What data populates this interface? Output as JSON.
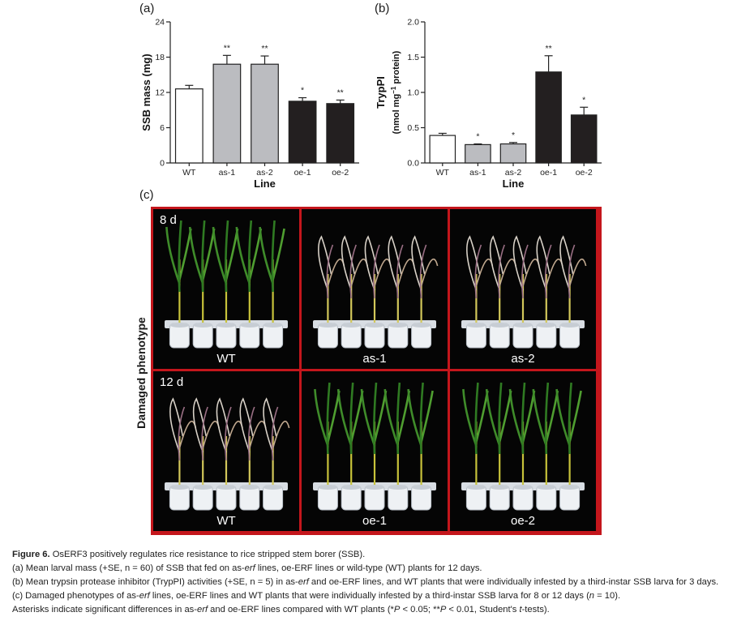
{
  "panels": {
    "a": {
      "letter": "(a)",
      "chart_data": {
        "type": "bar",
        "categories": [
          "WT",
          "as-1",
          "as-2",
          "oe-1",
          "oe-2"
        ],
        "values": [
          12.6,
          16.8,
          16.8,
          10.5,
          10.1
        ],
        "errors": [
          0.6,
          1.5,
          1.4,
          0.6,
          0.6
        ],
        "significance": [
          "",
          "**",
          "**",
          "*",
          "**"
        ],
        "bar_colors": [
          "#ffffff",
          "#bbbcc0",
          "#bbbcc0",
          "#231f20",
          "#231f20"
        ],
        "ylabel": "SSB mass (mg)",
        "xlabel": "Line",
        "ylim": [
          0,
          24
        ],
        "yticks": [
          "0",
          "6",
          "12",
          "18",
          "24"
        ]
      }
    },
    "b": {
      "letter": "(b)",
      "chart_data": {
        "type": "bar",
        "categories": [
          "WT",
          "as-1",
          "as-2",
          "oe-1",
          "oe-2"
        ],
        "values": [
          0.39,
          0.26,
          0.27,
          1.29,
          0.68
        ],
        "errors": [
          0.03,
          0.01,
          0.02,
          0.23,
          0.11
        ],
        "significance": [
          "",
          "*",
          "*",
          "**",
          "*"
        ],
        "bar_colors": [
          "#ffffff",
          "#bbbcc0",
          "#bbbcc0",
          "#231f20",
          "#231f20"
        ],
        "ylabel_line1": "TrypPI",
        "ylabel_line2_pre": "(nmol mg",
        "ylabel_line2_sup": "−1",
        "ylabel_line2_post": " protein)",
        "xlabel": "Line",
        "ylim": [
          0,
          2.0
        ],
        "yticks": [
          "0.0",
          "0.5",
          "1.0",
          "1.5",
          "2.0"
        ]
      }
    },
    "c": {
      "letter": "(c)",
      "side_label": "Damaged phenotype",
      "rows": [
        {
          "day": "8 d",
          "cells": [
            {
              "label": "WT",
              "state": "healthy"
            },
            {
              "label": "as-1",
              "state": "damaged"
            },
            {
              "label": "as-2",
              "state": "damaged"
            }
          ]
        },
        {
          "day": "12 d",
          "cells": [
            {
              "label": "WT",
              "state": "damaged"
            },
            {
              "label": "oe-1",
              "state": "healthy"
            },
            {
              "label": "oe-2",
              "state": "healthy"
            }
          ]
        }
      ]
    }
  },
  "caption": {
    "figure_label": "Figure 6.",
    "title": "OsERF3 positively regulates rice resistance to rice stripped stem borer (SSB).",
    "line_a_1": "(a) Mean larval mass (+SE, n = 60) of SSB that fed on as-",
    "line_a_erf": "erf",
    "line_a_2": " lines, oe-ERF lines or wild-type (WT) plants for 12 days.",
    "line_b_1": "(b) Mean trypsin protease inhibitor (TrypPI) activities (+SE, n = 5) in as-",
    "line_b_erf": "erf",
    "line_b_2": " and oe-ERF lines, and WT plants that were individually infested by a third-instar SSB larva for 3 days.",
    "line_c_1": "(c) Damaged phenotypes of as-",
    "line_c_erf": "erf",
    "line_c_2": " lines, oe-ERF lines and WT plants that were individually infested by a third-instar SSB larva for 8 or 12 days (",
    "line_c_n": "n",
    "line_c_3": " = 10).",
    "line_d_1": "Asterisks indicate significant differences in as-",
    "line_d_erf": "erf",
    "line_d_2": " and oe-ERF lines compared with WT plants (*",
    "line_d_p1": "P",
    "line_d_3": " < 0.05; **",
    "line_d_p2": "P",
    "line_d_4": " < 0.01, Student's ",
    "line_d_t": "t",
    "line_d_5": "-tests)."
  }
}
